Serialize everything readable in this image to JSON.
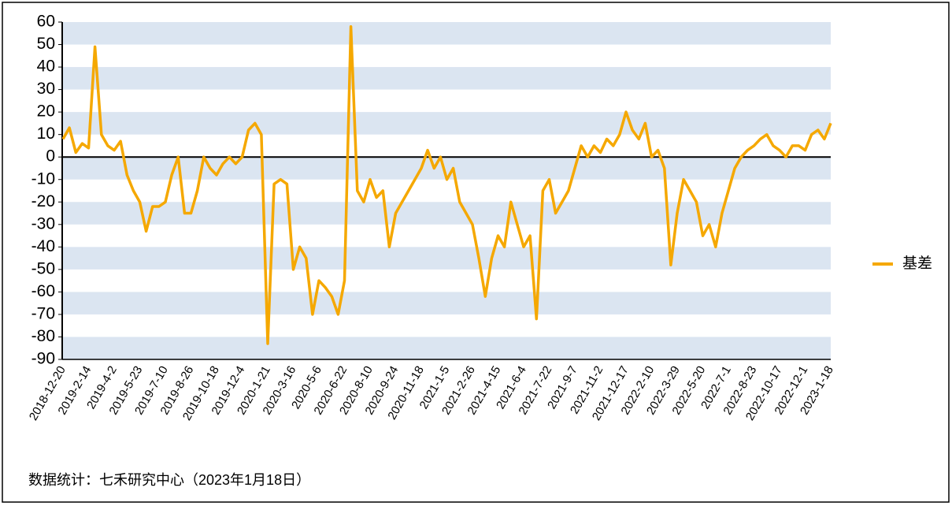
{
  "chart_data": {
    "type": "line",
    "source": "数据统计：七禾研究中心（2023年1月18日）",
    "categories": [
      "2018-12-20",
      null,
      null,
      null,
      "2019-2-14",
      null,
      null,
      null,
      "2019-4-2",
      null,
      null,
      null,
      "2019-5-23",
      null,
      null,
      null,
      "2019-7-10",
      null,
      null,
      null,
      "2019-8-26",
      null,
      null,
      null,
      "2019-10-18",
      null,
      null,
      null,
      "2019-12-4",
      null,
      null,
      null,
      "2020-1-21",
      null,
      null,
      null,
      "2020-3-16",
      null,
      null,
      null,
      "2020-5-6",
      null,
      null,
      null,
      "2020-6-22",
      null,
      null,
      null,
      "2020-8-10",
      null,
      null,
      null,
      "2020-9-24",
      null,
      null,
      null,
      "2020-11-18",
      null,
      null,
      null,
      "2021-1-5",
      null,
      null,
      null,
      "2021-2-26",
      null,
      null,
      null,
      "2021-4-15",
      null,
      null,
      null,
      "2021-6-4",
      null,
      null,
      null,
      "2021-7-22",
      null,
      null,
      null,
      "2021-9-7",
      null,
      null,
      null,
      "2021-11-2",
      null,
      null,
      null,
      "2021-12-17",
      null,
      null,
      null,
      "2022-2-10",
      null,
      null,
      null,
      "2022-3-29",
      null,
      null,
      null,
      "2022-5-20",
      null,
      null,
      null,
      "2022-7-1",
      null,
      null,
      null,
      "2022-8-23",
      null,
      null,
      null,
      "2022-10-17",
      null,
      null,
      null,
      "2022-12-1",
      null,
      null,
      null,
      "2023-1-18"
    ],
    "series": [
      {
        "name": "基差",
        "color": "#f5a800",
        "values": [
          8,
          13,
          2,
          6,
          4,
          49,
          10,
          5,
          3,
          7,
          -8,
          -15,
          -20,
          -33,
          -22,
          -22,
          -20,
          -8,
          0,
          -25,
          -25,
          -15,
          0,
          -5,
          -8,
          -3,
          0,
          -3,
          0,
          12,
          15,
          10,
          -83,
          -12,
          -10,
          -12,
          -50,
          -40,
          -45,
          -70,
          -55,
          -58,
          -62,
          -70,
          -55,
          58,
          -15,
          -20,
          -10,
          -18,
          -15,
          -40,
          -25,
          -20,
          -15,
          -10,
          -5,
          3,
          -5,
          0,
          -10,
          -5,
          -20,
          -25,
          -30,
          -45,
          -62,
          -45,
          -35,
          -40,
          -20,
          -30,
          -40,
          -35,
          -72,
          -15,
          -10,
          -25,
          -20,
          -15,
          -5,
          5,
          0,
          5,
          2,
          8,
          5,
          10,
          20,
          12,
          8,
          15,
          0,
          3,
          -5,
          -48,
          -25,
          -10,
          -15,
          -20,
          -35,
          -30,
          -40,
          -25,
          -15,
          -5,
          0,
          3,
          5,
          8,
          10,
          5,
          3,
          0,
          5,
          5,
          3,
          10,
          12,
          8,
          15
        ]
      }
    ],
    "ylim": [
      -90,
      60
    ],
    "yticks": [
      -90,
      -80,
      -70,
      -60,
      -50,
      -40,
      -30,
      -20,
      -10,
      0,
      10,
      20,
      30,
      40,
      50,
      60
    ],
    "legend": "right"
  }
}
